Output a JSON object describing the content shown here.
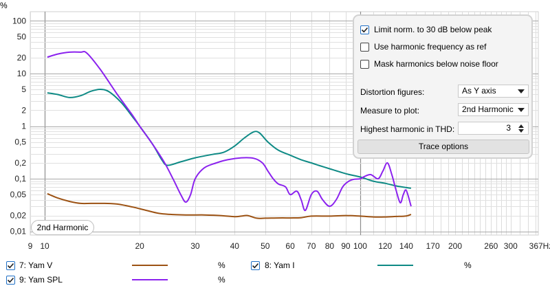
{
  "chart_data": {
    "type": "line",
    "ylabel": "%",
    "xunit": "Hz",
    "x_log": true,
    "y_log": true,
    "xlim": [
      9,
      367
    ],
    "ylim": [
      0.0085,
      150
    ],
    "grid": true,
    "x_tick_labels": [
      {
        "v": 9,
        "t": "9"
      },
      {
        "v": 10,
        "t": "10"
      },
      {
        "v": 20,
        "t": "20"
      },
      {
        "v": 30,
        "t": "30"
      },
      {
        "v": 40,
        "t": "40"
      },
      {
        "v": 50,
        "t": "50"
      },
      {
        "v": 60,
        "t": "60"
      },
      {
        "v": 70,
        "t": "70"
      },
      {
        "v": 80,
        "t": "80"
      },
      {
        "v": 90,
        "t": "90"
      },
      {
        "v": 100,
        "t": "100"
      },
      {
        "v": 120,
        "t": "120"
      },
      {
        "v": 140,
        "t": "140"
      },
      {
        "v": 170,
        "t": "170"
      },
      {
        "v": 200,
        "t": "200"
      },
      {
        "v": 260,
        "t": "260"
      },
      {
        "v": 300,
        "t": "300"
      },
      {
        "v": 367,
        "t": "367Hz"
      }
    ],
    "y_tick_labels": [
      {
        "v": 100,
        "t": "100"
      },
      {
        "v": 50,
        "t": "50"
      },
      {
        "v": 20,
        "t": "20"
      },
      {
        "v": 10,
        "t": "10"
      },
      {
        "v": 5,
        "t": "5"
      },
      {
        "v": 2,
        "t": "2"
      },
      {
        "v": 1,
        "t": "1"
      },
      {
        "v": 0.5,
        "t": "0,5"
      },
      {
        "v": 0.2,
        "t": "0,2"
      },
      {
        "v": 0.1,
        "t": "0,1"
      },
      {
        "v": 0.05,
        "t": "0,05"
      },
      {
        "v": 0.02,
        "t": "0,02"
      },
      {
        "v": 0.01,
        "t": "0,01"
      }
    ],
    "series": [
      {
        "name": "7: Yam V",
        "color": "#9c5213",
        "points": [
          [
            10.2,
            0.052
          ],
          [
            11,
            0.043
          ],
          [
            12,
            0.037
          ],
          [
            13,
            0.034
          ],
          [
            14,
            0.034
          ],
          [
            15.5,
            0.034
          ],
          [
            17,
            0.033
          ],
          [
            19,
            0.029
          ],
          [
            21,
            0.025
          ],
          [
            23,
            0.022
          ],
          [
            25,
            0.021
          ],
          [
            28,
            0.0205
          ],
          [
            32,
            0.0205
          ],
          [
            36,
            0.02
          ],
          [
            40,
            0.019
          ],
          [
            42,
            0.0195
          ],
          [
            44,
            0.02
          ],
          [
            47,
            0.0178
          ],
          [
            50,
            0.0178
          ],
          [
            55,
            0.018
          ],
          [
            60,
            0.018
          ],
          [
            65,
            0.0182
          ],
          [
            70,
            0.0195
          ],
          [
            80,
            0.0195
          ],
          [
            90,
            0.02
          ],
          [
            100,
            0.0195
          ],
          [
            110,
            0.0188
          ],
          [
            120,
            0.0188
          ],
          [
            130,
            0.0192
          ],
          [
            140,
            0.0196
          ],
          [
            145,
            0.021
          ]
        ]
      },
      {
        "name": "8: Yam I",
        "color": "#0e8a85",
        "points": [
          [
            10.2,
            4.3
          ],
          [
            11,
            4.0
          ],
          [
            12,
            3.5
          ],
          [
            13,
            3.8
          ],
          [
            14,
            4.6
          ],
          [
            15,
            5.0
          ],
          [
            16,
            4.5
          ],
          [
            17.5,
            2.8
          ],
          [
            19,
            1.5
          ],
          [
            20,
            1.0
          ],
          [
            22,
            0.45
          ],
          [
            23.5,
            0.23
          ],
          [
            24.5,
            0.18
          ],
          [
            27,
            0.21
          ],
          [
            30,
            0.25
          ],
          [
            34,
            0.29
          ],
          [
            37,
            0.32
          ],
          [
            40,
            0.42
          ],
          [
            43,
            0.6
          ],
          [
            46,
            0.78
          ],
          [
            48,
            0.74
          ],
          [
            51,
            0.5
          ],
          [
            55,
            0.35
          ],
          [
            60,
            0.28
          ],
          [
            65,
            0.23
          ],
          [
            70,
            0.2
          ],
          [
            75,
            0.175
          ],
          [
            80,
            0.155
          ],
          [
            90,
            0.125
          ],
          [
            100,
            0.108
          ],
          [
            110,
            0.09
          ],
          [
            120,
            0.082
          ],
          [
            130,
            0.073
          ],
          [
            145,
            0.066
          ]
        ]
      },
      {
        "name": "9: Yam SPL",
        "color": "#8b22ee",
        "points": [
          [
            10.2,
            20.5
          ],
          [
            11,
            23.5
          ],
          [
            12,
            25.5
          ],
          [
            13,
            25.5
          ],
          [
            13.6,
            24.5
          ],
          [
            15,
            12
          ],
          [
            17,
            4
          ],
          [
            19,
            1.6
          ],
          [
            20,
            1.0
          ],
          [
            22,
            0.45
          ],
          [
            24,
            0.2
          ],
          [
            25.5,
            0.1
          ],
          [
            27,
            0.05
          ],
          [
            28,
            0.036
          ],
          [
            29,
            0.05
          ],
          [
            30,
            0.1
          ],
          [
            32,
            0.16
          ],
          [
            35,
            0.2
          ],
          [
            38,
            0.23
          ],
          [
            42,
            0.25
          ],
          [
            46,
            0.245
          ],
          [
            49,
            0.2
          ],
          [
            51,
            0.14
          ],
          [
            53,
            0.1
          ],
          [
            55,
            0.08
          ],
          [
            58,
            0.07
          ],
          [
            60,
            0.05
          ],
          [
            63,
            0.058
          ],
          [
            65,
            0.04
          ],
          [
            67,
            0.025
          ],
          [
            70,
            0.05
          ],
          [
            73,
            0.058
          ],
          [
            76,
            0.04
          ],
          [
            80,
            0.03
          ],
          [
            84,
            0.04
          ],
          [
            88,
            0.07
          ],
          [
            92,
            0.09
          ],
          [
            96,
            0.098
          ],
          [
            100,
            0.1
          ],
          [
            103,
            0.11
          ],
          [
            108,
            0.12
          ],
          [
            114,
            0.1
          ],
          [
            118,
            0.14
          ],
          [
            122,
            0.2
          ],
          [
            126,
            0.12
          ],
          [
            130,
            0.06
          ],
          [
            134,
            0.035
          ],
          [
            137,
            0.05
          ],
          [
            140,
            0.06
          ],
          [
            145,
            0.03
          ]
        ]
      }
    ]
  },
  "badge": "2nd Harmonic",
  "options": {
    "limit_label": "Limit norm. to 30 dB below peak",
    "limit_checked": true,
    "harmref_label": "Use harmonic frequency as ref",
    "harmref_checked": false,
    "mask_label": "Mask harmonics below noise floor",
    "mask_checked": false,
    "distortion_label": "Distortion figures:",
    "distortion_value": "As Y axis",
    "measure_label": "Measure to plot:",
    "measure_value": "2nd Harmonic",
    "highest_label": "Highest harmonic in THD:",
    "highest_value": "3",
    "trace_button": "Trace options"
  },
  "legend": [
    {
      "name": "7: Yam V",
      "unit": "%",
      "color": "#9c5213",
      "checked": true
    },
    {
      "name": "8: Yam I",
      "unit": "%",
      "color": "#0e8a85",
      "checked": true
    },
    {
      "name": "9: Yam SPL",
      "unit": "%",
      "color": "#8b22ee",
      "checked": true
    }
  ]
}
